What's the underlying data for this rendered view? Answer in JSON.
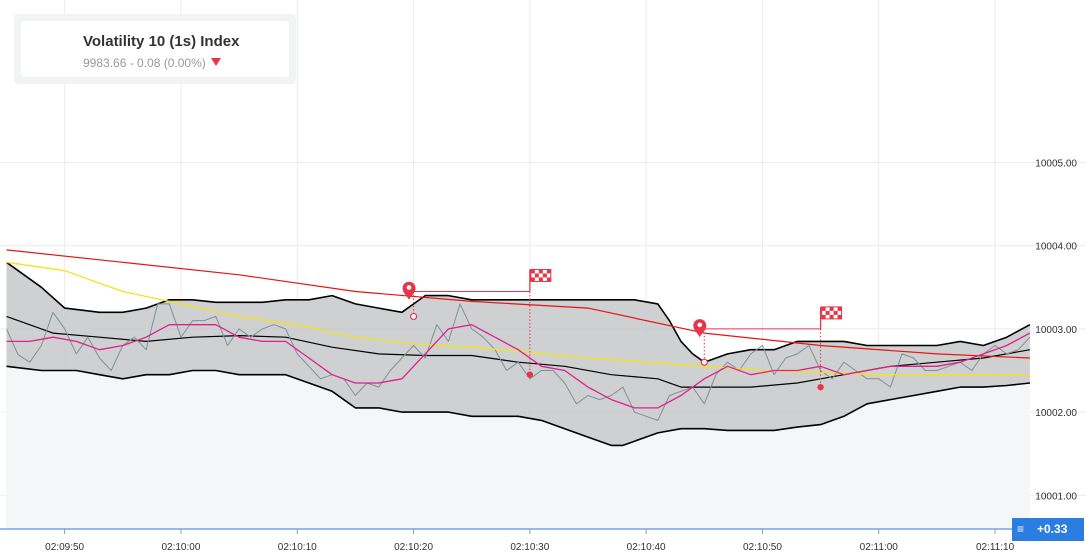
{
  "symbol": {
    "name": "Volatility 10 (1s) Index",
    "quote": "9983.66 - 0.08 (0.00%)",
    "trend_icon": "down-triangle-icon",
    "trend_color": "#e5374a"
  },
  "current_price_badge": {
    "label": "+0.33",
    "icon": "menu-lines-icon",
    "color": "#2b7de1"
  },
  "colors": {
    "band_fill": "#c6c8ca",
    "band_stroke": "#000000",
    "price_line": "#7f9196",
    "ma_red": "#e61414",
    "ma_yellow": "#f5e21b",
    "ma_magenta": "#e0218a",
    "marker_red": "#e5374a"
  },
  "chart_data": {
    "type": "line",
    "y_ticks": [
      "10001.00",
      "10002.00",
      "10003.00",
      "10004.00",
      "10005.00"
    ],
    "x_ticks": [
      "02:09:50",
      "02:10:00",
      "02:10:10",
      "02:10:20",
      "02:10:30",
      "02:10:40",
      "02:10:50",
      "02:11:00",
      "02:11:10"
    ],
    "ylim": [
      10000.0,
      10006.0
    ],
    "xlim_seconds_after_02_09_45": [
      0,
      88
    ],
    "grid": true,
    "series": [
      {
        "role": "price",
        "x": [
          0,
          1,
          2,
          3,
          4,
          5,
          6,
          7,
          8,
          9,
          10,
          11,
          12,
          13,
          14,
          15,
          16,
          17,
          18,
          19,
          20,
          21,
          22,
          23,
          24,
          25,
          26,
          27,
          28,
          29,
          30,
          31,
          32,
          33,
          34,
          35,
          36,
          37,
          38,
          39,
          40,
          41,
          42,
          43,
          44,
          45,
          46,
          47,
          48,
          49,
          50,
          51,
          52,
          53,
          54,
          55,
          56,
          57,
          58,
          59,
          60,
          61,
          62,
          63,
          64,
          65,
          66,
          67,
          68,
          69,
          70,
          71,
          72,
          73,
          74,
          75,
          76,
          77,
          78,
          79,
          80,
          81,
          82,
          83,
          84,
          85,
          86,
          87,
          88
        ],
        "values": [
          10003.0,
          10002.69,
          10002.6,
          10002.8,
          10003.2,
          10003.0,
          10002.7,
          10002.9,
          10002.65,
          10002.5,
          10002.8,
          10002.9,
          10002.75,
          10003.3,
          10003.3,
          10002.9,
          10003.1,
          10003.1,
          10003.15,
          10002.8,
          10003.0,
          10002.9,
          10003.0,
          10003.05,
          10003.0,
          10002.7,
          10002.55,
          10002.4,
          10002.45,
          10002.4,
          10002.2,
          10002.35,
          10002.3,
          10002.5,
          10002.65,
          10002.8,
          10002.65,
          10003.05,
          10002.85,
          10003.3,
          10003.0,
          10002.9,
          10002.75,
          10002.5,
          10002.6,
          10002.4,
          10002.5,
          10002.5,
          10002.35,
          10002.1,
          10002.2,
          10002.15,
          10002.2,
          10002.3,
          10002.0,
          10001.95,
          10001.9,
          10002.2,
          10002.25,
          10002.3,
          10002.1,
          10002.45,
          10002.6,
          10002.5,
          10002.7,
          10002.8,
          10002.45,
          10002.65,
          10002.7,
          10002.8,
          10002.5,
          10002.4,
          10002.6,
          10002.5,
          10002.4,
          10002.4,
          10002.3,
          10002.7,
          10002.65,
          10002.5,
          10002.5,
          10002.55,
          10002.6,
          10002.5,
          10002.7,
          10002.8,
          10002.7,
          10002.75,
          10002.9
        ]
      },
      {
        "role": "bollinger-upper",
        "x": [
          0,
          3,
          5,
          8,
          10,
          12,
          14,
          16,
          18,
          20,
          22,
          24,
          26,
          28,
          30,
          32,
          34,
          36,
          38,
          40,
          42,
          44,
          46,
          48,
          50,
          52,
          54,
          56,
          57,
          58,
          59,
          60,
          62,
          64,
          66,
          68,
          70,
          72,
          74,
          76,
          78,
          80,
          82,
          84,
          86,
          88
        ],
        "values": [
          10003.8,
          10003.5,
          10003.25,
          10003.2,
          10003.2,
          10003.25,
          10003.35,
          10003.35,
          10003.32,
          10003.32,
          10003.32,
          10003.35,
          10003.35,
          10003.4,
          10003.3,
          10003.25,
          10003.2,
          10003.4,
          10003.4,
          10003.35,
          10003.35,
          10003.35,
          10003.35,
          10003.35,
          10003.35,
          10003.35,
          10003.35,
          10003.3,
          10003.1,
          10002.85,
          10002.7,
          10002.6,
          10002.7,
          10002.75,
          10002.75,
          10002.85,
          10002.85,
          10002.85,
          10002.8,
          10002.8,
          10002.8,
          10002.8,
          10002.85,
          10002.8,
          10002.9,
          10003.05
        ]
      },
      {
        "role": "bollinger-middle",
        "x": [
          0,
          4,
          8,
          12,
          16,
          20,
          24,
          28,
          32,
          36,
          40,
          44,
          48,
          52,
          56,
          58,
          60,
          64,
          68,
          72,
          76,
          80,
          84,
          88
        ],
        "values": [
          10003.15,
          10002.95,
          10002.9,
          10002.85,
          10002.9,
          10002.92,
          10002.9,
          10002.78,
          10002.7,
          10002.68,
          10002.68,
          10002.6,
          10002.55,
          10002.45,
          10002.4,
          10002.3,
          10002.3,
          10002.3,
          10002.35,
          10002.45,
          10002.55,
          10002.6,
          10002.65,
          10002.75
        ]
      },
      {
        "role": "bollinger-lower",
        "x": [
          0,
          3,
          6,
          8,
          10,
          12,
          14,
          16,
          18,
          20,
          24,
          28,
          30,
          32,
          34,
          36,
          38,
          40,
          42,
          44,
          46,
          48,
          50,
          52,
          53,
          54,
          56,
          58,
          60,
          62,
          64,
          66,
          68,
          70,
          72,
          74,
          76,
          78,
          80,
          82,
          84,
          86,
          88
        ],
        "values": [
          10002.55,
          10002.5,
          10002.5,
          10002.45,
          10002.4,
          10002.45,
          10002.45,
          10002.5,
          10002.5,
          10002.45,
          10002.45,
          10002.25,
          10002.05,
          10002.05,
          10002.0,
          10002.0,
          10002.0,
          10001.95,
          10001.95,
          10001.95,
          10001.9,
          10001.8,
          10001.7,
          10001.6,
          10001.6,
          10001.65,
          10001.75,
          10001.8,
          10001.8,
          10001.78,
          10001.78,
          10001.78,
          10001.82,
          10001.85,
          10001.95,
          10002.1,
          10002.15,
          10002.2,
          10002.25,
          10002.3,
          10002.3,
          10002.32,
          10002.35
        ]
      },
      {
        "role": "moving-average-red",
        "x": [
          0,
          10,
          20,
          30,
          40,
          50,
          60,
          70,
          80,
          88
        ],
        "values": [
          10003.95,
          10003.8,
          10003.65,
          10003.45,
          10003.33,
          10003.25,
          10002.95,
          10002.8,
          10002.7,
          10002.65
        ]
      },
      {
        "role": "moving-average-yellow",
        "x": [
          0,
          5,
          10,
          15,
          20,
          25,
          30,
          35,
          40,
          45,
          50,
          55,
          60,
          65,
          70,
          75,
          80,
          85,
          88
        ],
        "values": [
          10003.8,
          10003.7,
          10003.45,
          10003.3,
          10003.15,
          10003.05,
          10002.9,
          10002.82,
          10002.78,
          10002.72,
          10002.65,
          10002.6,
          10002.55,
          10002.5,
          10002.48,
          10002.45,
          10002.45,
          10002.45,
          10002.45
        ]
      },
      {
        "role": "moving-average-magenta",
        "x": [
          0,
          2,
          4,
          6,
          8,
          10,
          12,
          14,
          16,
          18,
          20,
          22,
          24,
          26,
          28,
          30,
          32,
          34,
          36,
          38,
          40,
          42,
          44,
          46,
          48,
          50,
          52,
          54,
          56,
          58,
          60,
          62,
          64,
          66,
          68,
          70,
          72,
          74,
          76,
          78,
          80,
          82,
          84,
          86,
          88
        ],
        "values": [
          10002.85,
          10002.85,
          10002.9,
          10002.85,
          10002.75,
          10002.8,
          10002.9,
          10003.05,
          10003.05,
          10003.05,
          10002.9,
          10002.85,
          10002.85,
          10002.65,
          10002.45,
          10002.35,
          10002.35,
          10002.4,
          10002.7,
          10003.0,
          10003.05,
          10002.9,
          10002.75,
          10002.55,
          10002.5,
          10002.3,
          10002.15,
          10002.05,
          10002.05,
          10002.2,
          10002.4,
          10002.55,
          10002.45,
          10002.5,
          10002.5,
          10002.55,
          10002.45,
          10002.5,
          10002.55,
          10002.55,
          10002.55,
          10002.6,
          10002.7,
          10002.8,
          10002.95
        ]
      }
    ],
    "trades": [
      {
        "entry_x": 35,
        "entry_y": 10003.15,
        "exit_x": 45,
        "exit_y": 10002.45,
        "barrier_y": 10003.45
      },
      {
        "entry_x": 60,
        "entry_y": 10002.6,
        "exit_x": 70,
        "exit_y": 10002.3,
        "barrier_y": 10003.0
      }
    ]
  }
}
